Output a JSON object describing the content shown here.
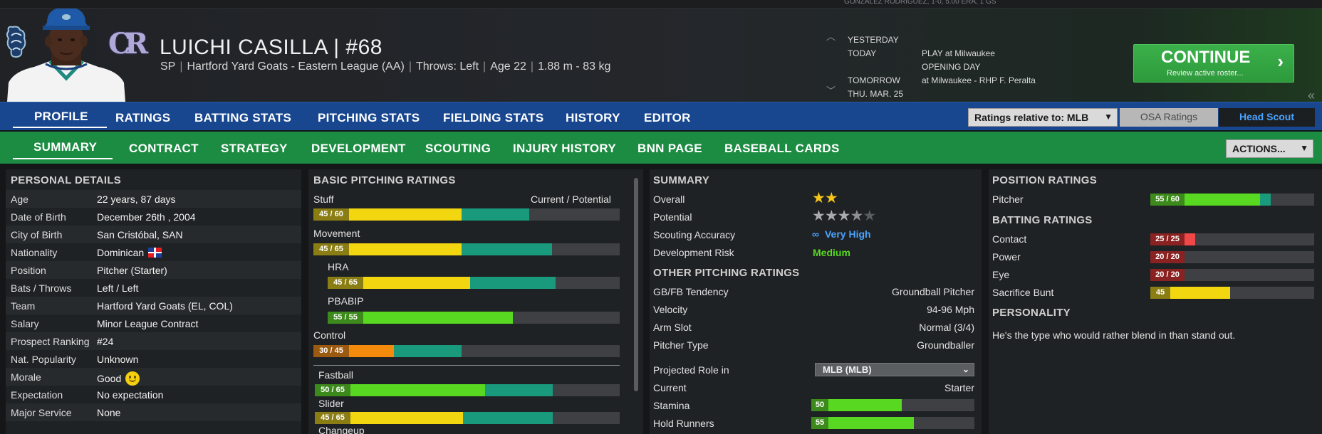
{
  "header": {
    "top_strip": "GONZALEZ RODRIGUEZ, 1-0, 5.00 ERA, 1 GS",
    "player_name": "LUICHI CASILLA  |  #68",
    "info": [
      "SP",
      "Hartford Yard Goats - Eastern League (AA)",
      "Throws: Left",
      "Age 22",
      "1.88 m - 83 kg"
    ],
    "schedule": {
      "yesterday": "YESTERDAY",
      "today": "TODAY",
      "today_event": "PLAY at Milwaukee",
      "today_sub": "OPENING DAY",
      "tomorrow": "TOMORROW",
      "tomorrow_event": "at Milwaukee - RHP F. Peralta",
      "date": "THU. MAR. 25"
    },
    "continue": {
      "label": "CONTINUE",
      "sub": "Review active roster..."
    }
  },
  "nav": {
    "primary": [
      "PROFILE",
      "RATINGS",
      "BATTING STATS",
      "PITCHING STATS",
      "FIELDING STATS",
      "HISTORY",
      "EDITOR"
    ],
    "secondary": [
      "SUMMARY",
      "CONTRACT",
      "STRATEGY",
      "DEVELOPMENT",
      "SCOUTING",
      "INJURY HISTORY",
      "BNN PAGE",
      "BASEBALL CARDS"
    ],
    "ratings_relative": "Ratings relative to: MLB",
    "osa": "OSA Ratings",
    "scout": "Head Scout",
    "actions": "ACTIONS..."
  },
  "personal": {
    "title": "PERSONAL DETAILS",
    "rows": [
      {
        "k": "Age",
        "v": "22 years, 87 days"
      },
      {
        "k": "Date of Birth",
        "v": "December 26th , 2004"
      },
      {
        "k": "City of Birth",
        "v": "San Cristóbal, SAN"
      },
      {
        "k": "Nationality",
        "v": "Dominican"
      },
      {
        "k": "Position",
        "v": "Pitcher (Starter)"
      },
      {
        "k": "Bats / Throws",
        "v": "Left / Left"
      },
      {
        "k": "Team",
        "v": "Hartford Yard Goats (EL, COL)"
      },
      {
        "k": "Salary",
        "v": "Minor League Contract"
      },
      {
        "k": "Prospect Ranking",
        "v": "#24"
      },
      {
        "k": "Nat. Popularity",
        "v": "Unknown"
      },
      {
        "k": "Morale",
        "v": "Good"
      },
      {
        "k": "Expectation",
        "v": "No expectation"
      },
      {
        "k": "Major Service",
        "v": "None"
      }
    ]
  },
  "pitching": {
    "title": "BASIC PITCHING RATINGS",
    "cp_label": "Current / Potential",
    "ratings": [
      {
        "name": "Stuff",
        "badge": "45 / 60",
        "current": 45,
        "potential": 60,
        "color": "#f2d60f"
      },
      {
        "name": "Movement",
        "badge": "45 / 65",
        "current": 45,
        "potential": 65,
        "color": "#f2d60f"
      },
      {
        "name": "HRA",
        "badge": "45 / 65",
        "current": 45,
        "potential": 65,
        "color": "#f2d60f"
      },
      {
        "name": "PBABIP",
        "badge": "55 / 55",
        "current": 55,
        "potential": 55,
        "color": "#58d821"
      },
      {
        "name": "Control",
        "badge": "30 / 45",
        "current": 30,
        "potential": 45,
        "color": "#f58b0c"
      }
    ],
    "pitches": [
      {
        "name": "Fastball",
        "badge": "50 / 65",
        "current": 50,
        "potential": 65,
        "color": "#58d821"
      },
      {
        "name": "Slider",
        "badge": "45 / 65",
        "current": 45,
        "potential": 65,
        "color": "#f2d60f"
      },
      {
        "name": "Changeup"
      }
    ]
  },
  "summary": {
    "title": "SUMMARY",
    "overall": "Overall",
    "overall_stars": 2,
    "potential": "Potential",
    "potential_stars": 3.5,
    "accuracy": "Scouting Accuracy",
    "accuracy_value": "Very High",
    "risk": "Development Risk",
    "risk_value": "Medium",
    "other_title": "OTHER PITCHING RATINGS",
    "rows": [
      {
        "k": "GB/FB Tendency",
        "v": "Groundball Pitcher"
      },
      {
        "k": "Velocity",
        "v": "94-96 Mph"
      },
      {
        "k": "Arm Slot",
        "v": "Normal (3/4)"
      },
      {
        "k": "Pitcher Type",
        "v": "Groundballer"
      }
    ],
    "projected": "Projected Role in",
    "projected_value": "MLB (MLB)",
    "current": "Current",
    "current_value": "Starter",
    "stamina": "Stamina",
    "stamina_value": "50",
    "stamina_num": 50,
    "hold": "Hold Runners",
    "hold_value": "55",
    "hold_num": 55
  },
  "position": {
    "title": "POSITION RATINGS",
    "pitcher": "Pitcher",
    "pitcher_badge": "55 / 60",
    "pitcher_cur": 55,
    "pitcher_pot": 60,
    "batting_title": "BATTING RATINGS",
    "batting": [
      {
        "name": "Contact",
        "badge": "25 / 25",
        "value": 25,
        "color": "#f04848"
      },
      {
        "name": "Power",
        "badge": "20 / 20",
        "value": 20,
        "color": "#f04848"
      },
      {
        "name": "Eye",
        "badge": "20 / 20",
        "value": 20,
        "color": "#f04848"
      },
      {
        "name": "Sacrifice Bunt",
        "badge": "45",
        "value": 45,
        "color": "#f2d60f"
      }
    ],
    "personality_title": "PERSONALITY",
    "personality": "He's the type who would rather blend in than stand out."
  },
  "colors": {
    "potential": "#1a9a7c",
    "badge_yellow": "#8a7d14",
    "badge_green": "#3d8a1c",
    "badge_orange": "#9c5a10",
    "badge_red": "#8a2222"
  }
}
